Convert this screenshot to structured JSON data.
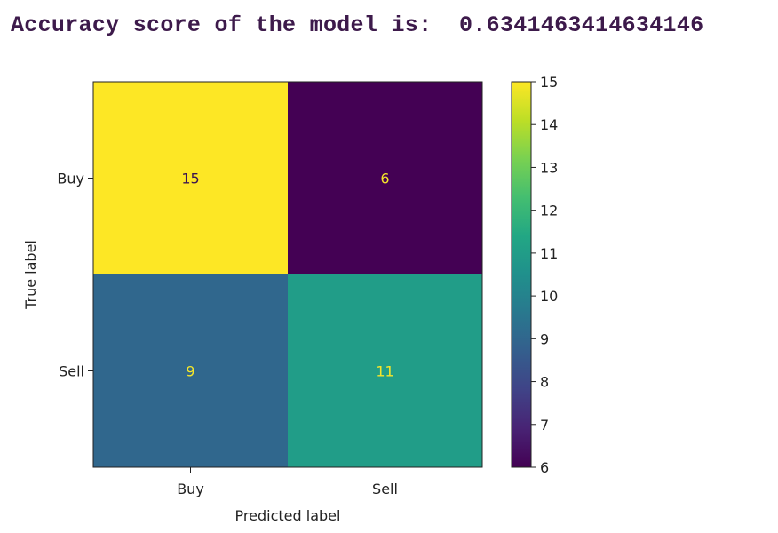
{
  "output": {
    "label": "Accuracy score of the model is:",
    "value": "0.6341463414634146"
  },
  "chart_data": {
    "type": "heatmap",
    "title": "",
    "x_categories": [
      "Buy",
      "Sell"
    ],
    "y_categories": [
      "Buy",
      "Sell"
    ],
    "values": [
      [
        15,
        6
      ],
      [
        9,
        11
      ]
    ],
    "xlabel": "Predicted label",
    "ylabel": "True label",
    "colormap": "viridis",
    "colorbar": {
      "min": 6,
      "max": 15,
      "ticks": [
        "6",
        "7",
        "8",
        "9",
        "10",
        "11",
        "12",
        "13",
        "14",
        "15"
      ]
    },
    "grid": false
  }
}
